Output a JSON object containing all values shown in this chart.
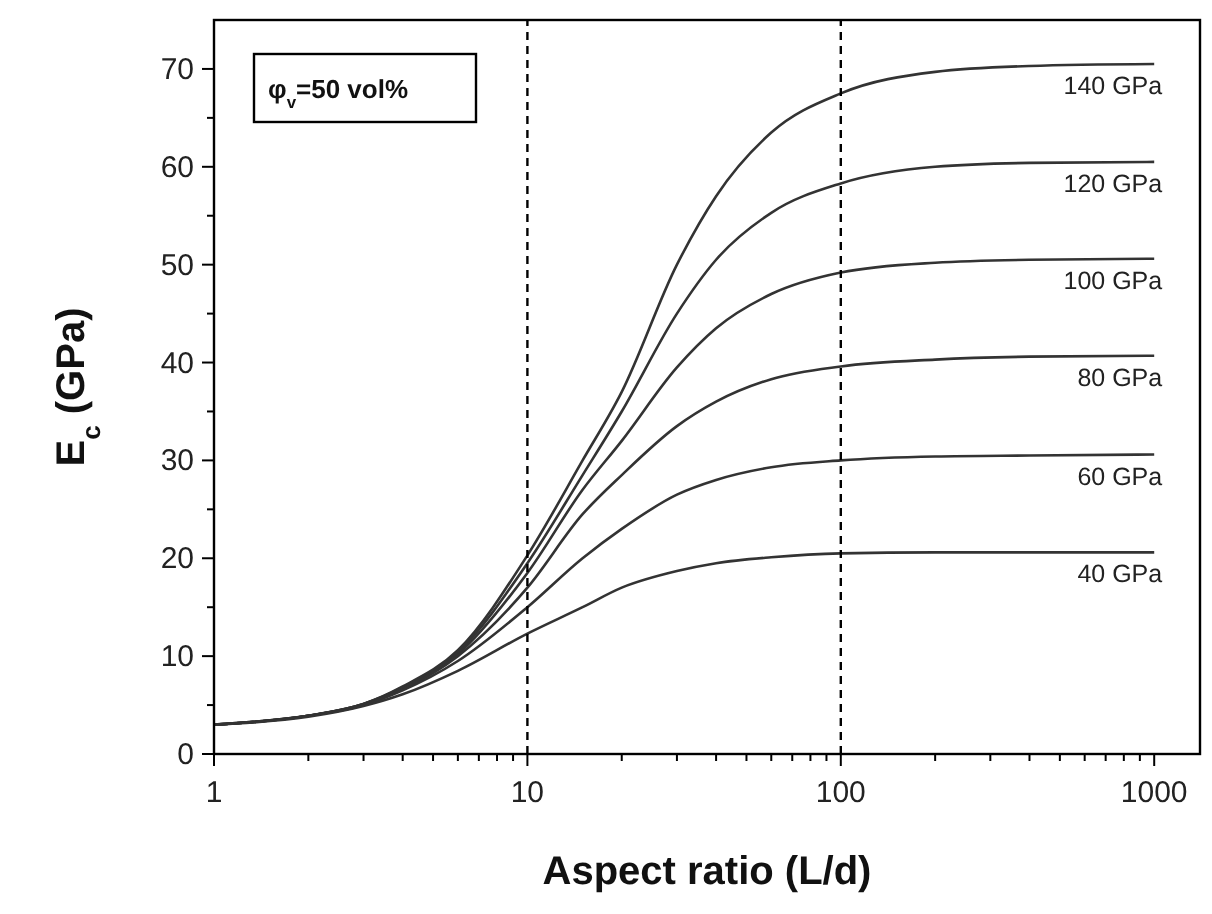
{
  "chart_data": {
    "type": "line",
    "xlabel": "Aspect ratio (L/d)",
    "ylabel": "E$_{c}$ (GPa)",
    "annotations": [
      "φ$_{v}$=50 vol%"
    ],
    "log": "x",
    "grid": false,
    "marker": "none",
    "line_style": "solid",
    "xlim": [
      1,
      1400
    ],
    "ylim": [
      0,
      75
    ],
    "xticks": [
      1,
      {
        "value": 2,
        "label": null
      },
      {
        "value": 3,
        "label": null
      },
      {
        "value": 4,
        "label": null
      },
      {
        "value": 5,
        "label": null
      },
      {
        "value": 6,
        "label": null
      },
      {
        "value": 7,
        "label": null
      },
      {
        "value": 8,
        "label": null
      },
      {
        "value": 9,
        "label": null
      },
      10,
      {
        "value": 20,
        "label": null
      },
      {
        "value": 30,
        "label": null
      },
      {
        "value": 40,
        "label": null
      },
      {
        "value": 50,
        "label": null
      },
      {
        "value": 60,
        "label": null
      },
      {
        "value": 70,
        "label": null
      },
      {
        "value": 80,
        "label": null
      },
      {
        "value": 90,
        "label": null
      },
      100,
      {
        "value": 200,
        "label": null
      },
      {
        "value": 300,
        "label": null
      },
      {
        "value": 400,
        "label": null
      },
      {
        "value": 500,
        "label": null
      },
      {
        "value": 600,
        "label": null
      },
      {
        "value": 700,
        "label": null
      },
      {
        "value": 800,
        "label": null
      },
      {
        "value": 900,
        "label": null
      },
      1000
    ],
    "yticks": [
      0,
      {
        "value": 5,
        "label": null
      },
      10,
      {
        "value": 15,
        "label": null
      },
      20,
      {
        "value": 25,
        "label": null
      },
      30,
      {
        "value": 35,
        "label": null
      },
      40,
      {
        "value": 45,
        "label": null
      },
      50,
      {
        "value": 55,
        "label": null
      },
      60,
      {
        "value": 65,
        "label": null
      },
      70
    ],
    "x": [
      1,
      2,
      3,
      4,
      6,
      10,
      15,
      20,
      30,
      40,
      60,
      100,
      200,
      400,
      1000
    ],
    "series": [
      {
        "name": "140 GPa",
        "color": "#333333",
        "values": [
          3.0,
          3.9,
          5.1,
          6.9,
          10.6,
          20.3,
          30,
          37,
          50,
          57,
          63.5,
          67.5,
          69.7,
          70.3,
          70.5
        ]
      },
      {
        "name": "120 GPa",
        "color": "#333333",
        "values": [
          3.0,
          3.9,
          5.1,
          6.8,
          10.4,
          19.5,
          28.5,
          35,
          45,
          50.5,
          55.3,
          58.3,
          60,
          60.4,
          60.5
        ]
      },
      {
        "name": "100 GPa",
        "color": "#333333",
        "values": [
          3.0,
          3.9,
          5.1,
          6.7,
          10.2,
          18.5,
          27,
          32,
          39.5,
          43.5,
          47,
          49.2,
          50.2,
          50.5,
          50.6
        ]
      },
      {
        "name": "80 GPa",
        "color": "#333333",
        "values": [
          3.0,
          3.9,
          5.0,
          6.6,
          10,
          17,
          24.5,
          28.5,
          33.5,
          36,
          38.3,
          39.6,
          40.3,
          40.6,
          40.7
        ]
      },
      {
        "name": "60 GPa",
        "color": "#333333",
        "values": [
          3.0,
          3.9,
          5.0,
          6.5,
          9.5,
          15,
          20,
          23,
          26.5,
          28,
          29.3,
          30,
          30.4,
          30.5,
          30.6
        ]
      },
      {
        "name": "40 GPa",
        "color": "#333333",
        "values": [
          3.0,
          3.8,
          4.9,
          6.1,
          8.5,
          12.3,
          15,
          17,
          18.7,
          19.5,
          20.1,
          20.5,
          20.6,
          20.6,
          20.6
        ]
      }
    ],
    "ref_lines": [
      {
        "axis": "x",
        "value": 10,
        "color": "#000000",
        "line_style": "dashed"
      },
      {
        "axis": "x",
        "value": 100,
        "color": "#000000",
        "line_style": "dashed"
      }
    ]
  }
}
